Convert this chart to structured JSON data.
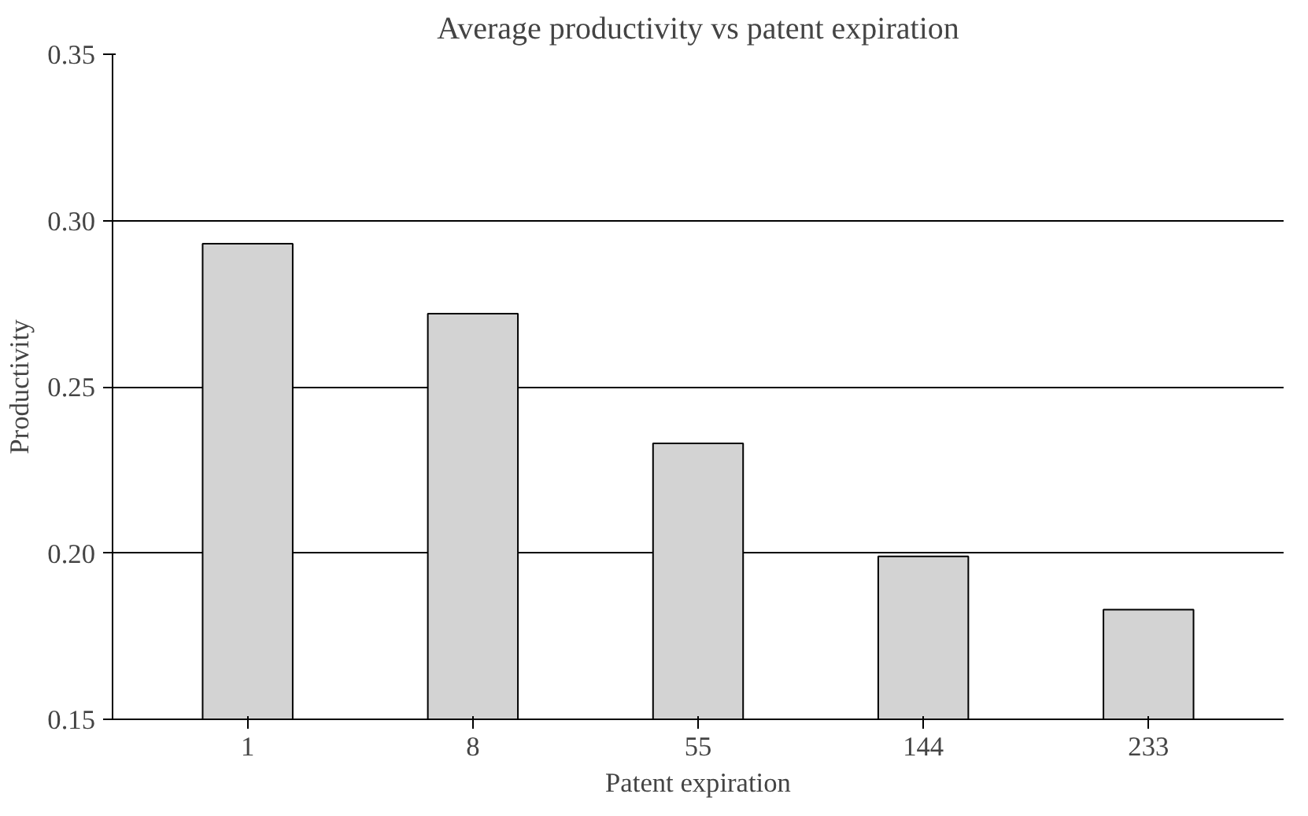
{
  "chart_data": {
    "type": "bar",
    "title": "Average productivity vs patent expiration",
    "xlabel": "Patent expiration",
    "ylabel": "Productivity",
    "categories": [
      "1",
      "8",
      "55",
      "144",
      "233"
    ],
    "values": [
      0.293,
      0.272,
      0.233,
      0.199,
      0.183
    ],
    "color": "#d3d3d3",
    "ylim": [
      0.15,
      0.35
    ],
    "yticks": [
      {
        "value": 0.15,
        "label": "0.15"
      },
      {
        "value": 0.2,
        "label": "0.20"
      },
      {
        "value": 0.25,
        "label": "0.25"
      },
      {
        "value": 0.3,
        "label": "0.30"
      },
      {
        "value": 0.35,
        "label": "0.35"
      }
    ],
    "grid": "y"
  }
}
